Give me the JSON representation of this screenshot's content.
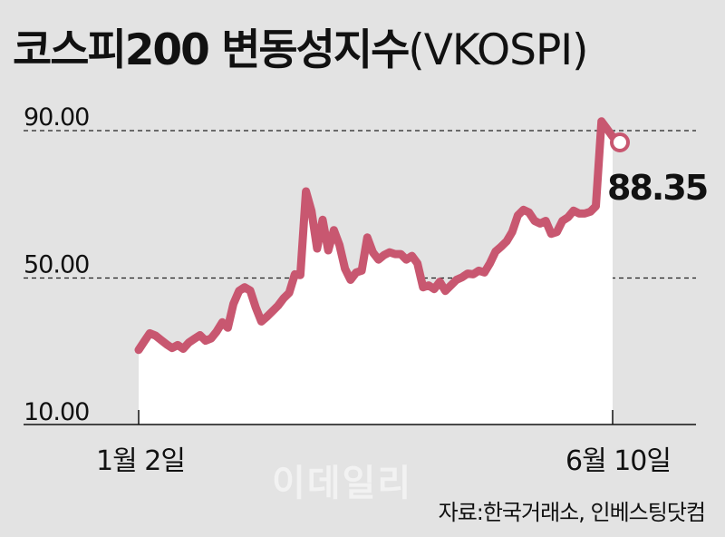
{
  "title": "코스피200 변동성지수",
  "title_paren": "(VKOSPI)",
  "watermark": "이데일리",
  "source": "자료:한국거래소, 인베스팅닷컴",
  "colors": {
    "line": "#c85770",
    "area": "#ffffff",
    "background": "#e3e3e3"
  },
  "chart_data": {
    "type": "area",
    "title": "코스피200 변동성지수(VKOSPI)",
    "ylim": [
      10,
      90
    ],
    "yticks": [
      "10.00",
      "50.00",
      "90.00"
    ],
    "x_labels": [
      "1월 2일",
      "6월 10일"
    ],
    "grid": "dashed at 50 and 90",
    "last_label": "88.35",
    "values": [
      30.5,
      32.8,
      35.0,
      34.4,
      33.2,
      32.0,
      31.0,
      31.8,
      30.8,
      32.5,
      33.5,
      34.5,
      33.0,
      33.6,
      35.5,
      38.0,
      36.5,
      43.0,
      46.5,
      47.5,
      46.6,
      42.0,
      38.2,
      39.5,
      41.0,
      42.5,
      44.5,
      46.0,
      51.0,
      50.8,
      73.5,
      68.2,
      58.0,
      65.8,
      57.5,
      63.0,
      59.0,
      52.5,
      49.5,
      51.5,
      52.0,
      61.0,
      57.0,
      55.0,
      56.2,
      57.0,
      56.5,
      56.5,
      55.0,
      56.0,
      54.0,
      47.5,
      48.0,
      47.0,
      49.0,
      46.5,
      48.0,
      49.5,
      50.2,
      51.2,
      51.0,
      52.0,
      51.5,
      54.0,
      57.2,
      58.5,
      60.0,
      62.5,
      67.0,
      68.5,
      67.8,
      65.5,
      64.8,
      65.5,
      62.0,
      62.5,
      65.5,
      66.5,
      68.3,
      67.5,
      67.5,
      68.0,
      69.5,
      92.5,
      90.5,
      88.35
    ]
  }
}
